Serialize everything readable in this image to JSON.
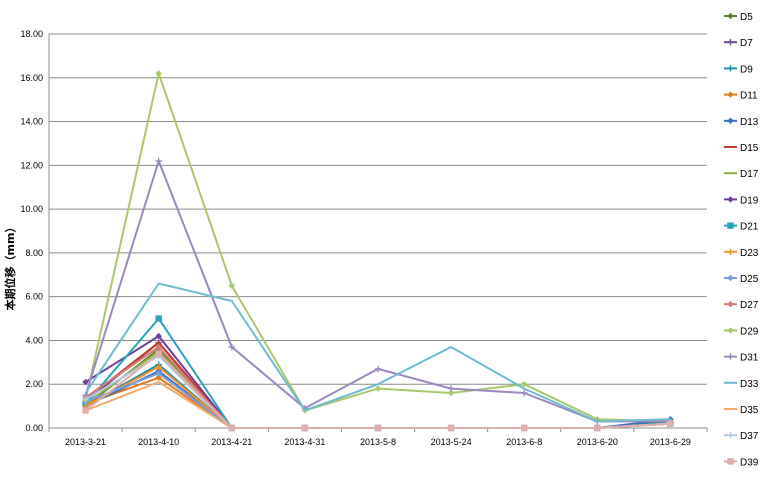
{
  "chart_data": {
    "type": "line",
    "title": "",
    "xlabel": "",
    "ylabel": "本期位移（mm）",
    "ylim": [
      0,
      18
    ],
    "yticks": [
      "0.00",
      "2.00",
      "4.00",
      "6.00",
      "8.00",
      "10.00",
      "12.00",
      "14.00",
      "16.00",
      "18.00"
    ],
    "grid": "horizontal",
    "legend": "right",
    "categories": [
      "2013-3-21",
      "2013-4-10",
      "2013-4-21",
      "2013-4-31",
      "2013-5-8",
      "2013-5-24",
      "2013-6-8",
      "2013-6-20",
      "2013-6-29"
    ],
    "series": [
      {
        "name": "D5",
        "color": "#5a7f2c",
        "marker": "diamond",
        "values": [
          1.0,
          3.6,
          0,
          0,
          0,
          0,
          0,
          0,
          0.2
        ]
      },
      {
        "name": "D7",
        "color": "#6b4d8f",
        "marker": "cross",
        "values": [
          1.2,
          3.9,
          0,
          0,
          0,
          0,
          0,
          0,
          0.2
        ]
      },
      {
        "name": "D9",
        "color": "#1f8ea3",
        "marker": "cross",
        "values": [
          1.0,
          2.9,
          0,
          0,
          0,
          0,
          0,
          0,
          0.3
        ]
      },
      {
        "name": "D11",
        "color": "#e07a1f",
        "marker": "diamond",
        "values": [
          1.1,
          2.3,
          0,
          0,
          0,
          0,
          0,
          0,
          0.2
        ]
      },
      {
        "name": "D13",
        "color": "#3a6fbf",
        "marker": "diamond",
        "values": [
          1.0,
          2.6,
          0,
          0,
          0,
          0,
          0,
          0,
          0.4
        ]
      },
      {
        "name": "D15",
        "color": "#c0392b",
        "marker": "none",
        "values": [
          1.3,
          3.9,
          0,
          0,
          0,
          0,
          0,
          0,
          0.2
        ]
      },
      {
        "name": "D17",
        "color": "#8fb043",
        "marker": "none",
        "values": [
          1.1,
          3.5,
          0,
          0,
          0,
          0,
          0,
          0,
          0.2
        ]
      },
      {
        "name": "D19",
        "color": "#6e3f97",
        "marker": "diamond",
        "values": [
          2.1,
          4.2,
          0,
          0,
          0,
          0,
          0,
          0,
          0.2
        ]
      },
      {
        "name": "D21",
        "color": "#2aa4b8",
        "marker": "square",
        "values": [
          1.1,
          5.0,
          0,
          0,
          0,
          0,
          0,
          0,
          0.2
        ]
      },
      {
        "name": "D23",
        "color": "#f0922e",
        "marker": "cross",
        "values": [
          1.0,
          2.8,
          0,
          0,
          0,
          0,
          0,
          0,
          0.2
        ]
      },
      {
        "name": "D25",
        "color": "#7a9fd6",
        "marker": "diamond",
        "values": [
          1.2,
          2.5,
          0,
          0,
          0,
          0,
          0,
          0,
          0.2
        ]
      },
      {
        "name": "D27",
        "color": "#d97a78",
        "marker": "diamond",
        "values": [
          1.4,
          3.7,
          0,
          0,
          0,
          0,
          0,
          0,
          0.2
        ]
      },
      {
        "name": "D29",
        "color": "#a9c96a",
        "marker": "diamond",
        "values": [
          1.3,
          16.2,
          6.5,
          0.8,
          1.8,
          1.6,
          2.0,
          0.4,
          0.3
        ]
      },
      {
        "name": "D31",
        "color": "#9b88c0",
        "marker": "cross",
        "values": [
          1.5,
          12.2,
          3.7,
          0.9,
          2.7,
          1.8,
          1.6,
          0.3,
          0.3
        ]
      },
      {
        "name": "D33",
        "color": "#6fbcd0",
        "marker": "none",
        "values": [
          1.6,
          6.6,
          5.8,
          0.8,
          2.0,
          3.7,
          1.8,
          0.3,
          0.4
        ]
      },
      {
        "name": "D35",
        "color": "#f5aa6a",
        "marker": "none",
        "values": [
          0.8,
          2.1,
          0,
          0,
          0,
          0,
          0,
          0,
          0.2
        ]
      },
      {
        "name": "D37",
        "color": "#b3c6e6",
        "marker": "cross",
        "values": [
          1.3,
          3.3,
          0,
          0,
          0,
          0,
          0,
          0,
          0.2
        ]
      },
      {
        "name": "D39",
        "color": "#e0aeae",
        "marker": "square",
        "values": [
          0.8,
          3.4,
          0,
          0,
          0,
          0,
          0,
          0,
          0.2
        ]
      }
    ]
  }
}
